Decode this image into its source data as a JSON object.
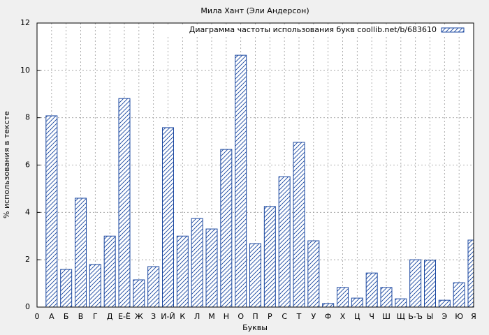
{
  "chart_data": {
    "type": "bar",
    "title": "Мила Хант (Эли Андерсон)",
    "x_label": "Буквы",
    "y_label": "% использования в тексте",
    "categories": [
      "0",
      "А",
      "Б",
      "В",
      "Г",
      "Д",
      "Е-Ё",
      "Ж",
      "З",
      "И-Й",
      "К",
      "Л",
      "М",
      "Н",
      "О",
      "П",
      "Р",
      "С",
      "Т",
      "У",
      "Ф",
      "Х",
      "Ц",
      "Ч",
      "Ш",
      "Щ",
      "Ь-Ъ",
      "Ы",
      "Э",
      "Ю",
      "Я"
    ],
    "series": [
      {
        "name": "Диаграмма частоты использования букв coollib.net/b/683610",
        "color": "#1a47a0",
        "values": [
          null,
          8.08,
          1.59,
          4.6,
          1.8,
          3.0,
          8.81,
          1.15,
          1.71,
          7.58,
          3.0,
          3.74,
          3.3,
          6.66,
          10.64,
          2.68,
          4.25,
          5.51,
          6.96,
          2.8,
          0.15,
          0.83,
          0.38,
          1.44,
          0.83,
          0.35,
          2.0,
          1.98,
          0.29,
          1.03,
          2.83
        ]
      }
    ],
    "ylim": [
      0,
      12
    ],
    "yticks": [
      0,
      2,
      4,
      6,
      8,
      10,
      12
    ],
    "grid": true,
    "legend": "top-right"
  }
}
